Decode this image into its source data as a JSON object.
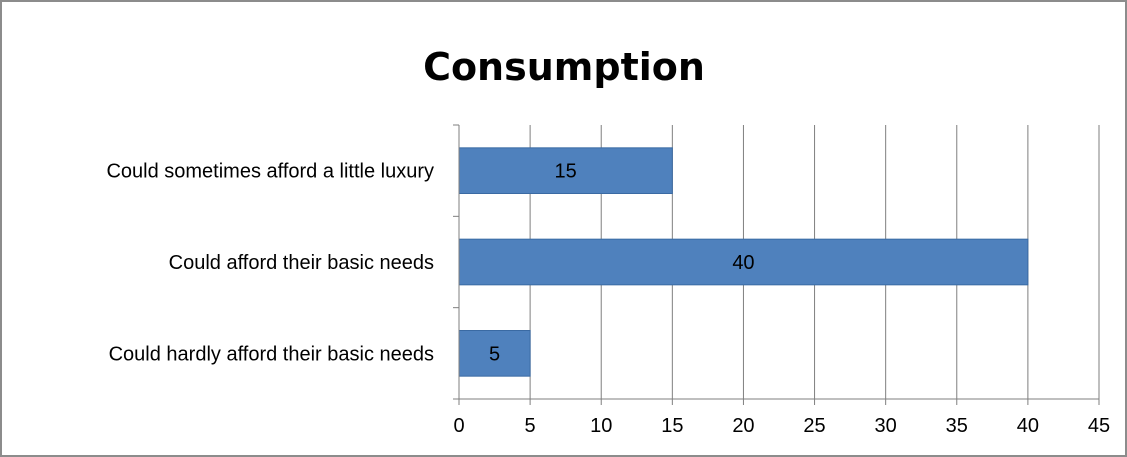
{
  "chart_data": {
    "type": "bar",
    "orientation": "horizontal",
    "title": "Consumption",
    "categories": [
      "Could sometimes afford a little luxury",
      "Could afford their basic needs",
      "Could hardly afford their basic needs"
    ],
    "values": [
      15,
      40,
      5
    ],
    "xlim": [
      0,
      45
    ],
    "x_ticks": [
      0,
      5,
      10,
      15,
      20,
      25,
      30,
      35,
      40,
      45
    ],
    "xlabel": "",
    "ylabel": "",
    "grid": "vertical",
    "legend": "none",
    "bar_color": "#4F81BD",
    "bar_border_color": "#3A6AA3",
    "grid_color": "#7f7f7f"
  }
}
